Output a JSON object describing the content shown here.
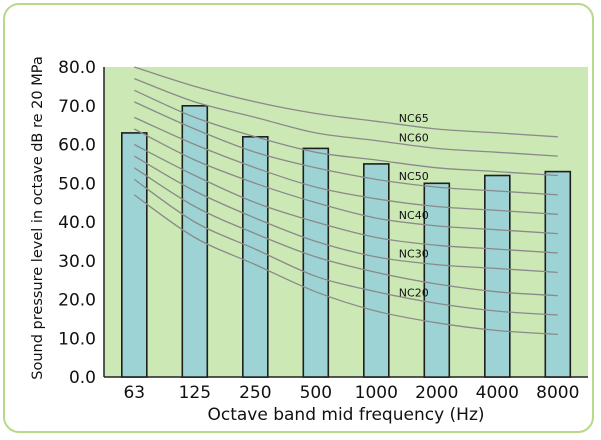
{
  "chart_data": {
    "type": "bar",
    "title": "",
    "xlabel": "Octave band mid frequency (Hz)",
    "ylabel": "Sound pressure level in octave dB re 20 MPa",
    "categories": [
      "63",
      "125",
      "250",
      "500",
      "1000",
      "2000",
      "4000",
      "8000"
    ],
    "values": [
      63,
      70,
      62,
      59,
      55,
      50,
      52,
      53
    ],
    "ylim": [
      0,
      80
    ],
    "yticks": [
      "0.0",
      "10.0",
      "20.0",
      "30.0",
      "40.0",
      "50.0",
      "60.0",
      "70.0",
      "80.0"
    ],
    "grid": false,
    "nc_curves": [
      {
        "name": "NC65",
        "values": [
          80,
          75,
          71,
          68,
          66,
          64,
          63,
          62
        ]
      },
      {
        "name": "NC60",
        "values": [
          77,
          71,
          67,
          63,
          61,
          59,
          58,
          57
        ]
      },
      {
        "name": "",
        "values": [
          74,
          67,
          62,
          58,
          56,
          54,
          53,
          52
        ]
      },
      {
        "name": "NC50",
        "values": [
          71,
          64,
          58,
          54,
          51,
          49,
          48,
          47
        ]
      },
      {
        "name": "",
        "values": [
          67,
          60,
          54,
          49,
          46,
          44,
          43,
          42
        ]
      },
      {
        "name": "NC40",
        "values": [
          64,
          56,
          50,
          45,
          41,
          39,
          38,
          37
        ]
      },
      {
        "name": "",
        "values": [
          60,
          52,
          45,
          40,
          36,
          34,
          33,
          32
        ]
      },
      {
        "name": "NC30",
        "values": [
          57,
          48,
          41,
          35,
          31,
          29,
          28,
          27
        ]
      },
      {
        "name": "",
        "values": [
          54,
          44,
          37,
          31,
          27,
          24,
          22,
          21
        ]
      },
      {
        "name": "NC20",
        "values": [
          51,
          40,
          33,
          26,
          22,
          19,
          17,
          16
        ]
      },
      {
        "name": "",
        "values": [
          47,
          36,
          29,
          22,
          17,
          14,
          12,
          11
        ]
      }
    ],
    "colors": {
      "plot_background": "#cce8b5",
      "bar_fill": "#9dd3d5",
      "bar_stroke": "#1f1f1f",
      "curve": "#8a8a8a",
      "frame": "#b8d98a"
    }
  }
}
